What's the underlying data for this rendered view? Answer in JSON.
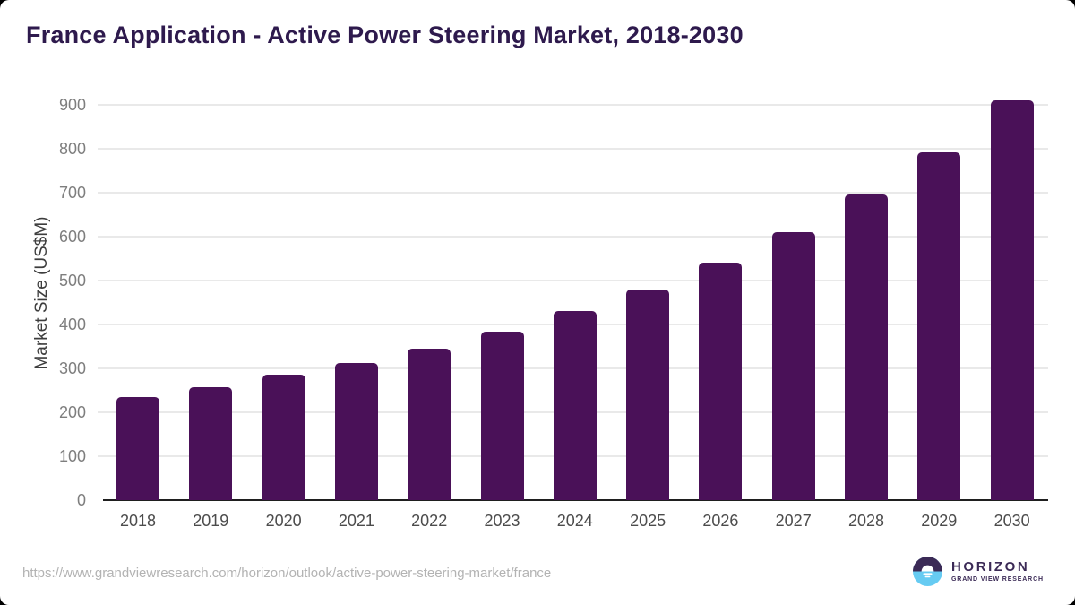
{
  "page": {
    "title": "France Application - Active Power Steering Market, 2018-2030"
  },
  "chart_data": {
    "type": "bar",
    "title": "France Application - Active Power Steering Market, 2018-2030",
    "categories": [
      "2018",
      "2019",
      "2020",
      "2021",
      "2022",
      "2023",
      "2024",
      "2025",
      "2026",
      "2027",
      "2028",
      "2029",
      "2030"
    ],
    "values": [
      235,
      258,
      285,
      313,
      345,
      384,
      430,
      480,
      541,
      611,
      695,
      792,
      910
    ],
    "xlabel": "",
    "ylabel": "Market Size (US$M)",
    "yticks": [
      0,
      100,
      200,
      300,
      400,
      500,
      600,
      700,
      800,
      900
    ],
    "ylim": [
      0,
      940
    ],
    "grid": "horizontal",
    "legend": "none",
    "bar_color": "#4a1158"
  },
  "colors": {
    "title": "#2e1a4d",
    "bar": "#4a1158",
    "gridline": "#e9e9e9",
    "axis_line": "#1f1f1f",
    "ytick_label": "#7e7e7e",
    "xtick_label": "#4c4c4c",
    "url_text": "#b3b3b3",
    "logo_purple": "#3b2a56",
    "logo_blue": "#66cbf2"
  },
  "footer": {
    "source_url": "https://www.grandviewresearch.com/horizon/outlook/active-power-steering-market/france",
    "logo": {
      "name": "HORIZON",
      "subtitle": "GRAND VIEW RESEARCH"
    }
  }
}
